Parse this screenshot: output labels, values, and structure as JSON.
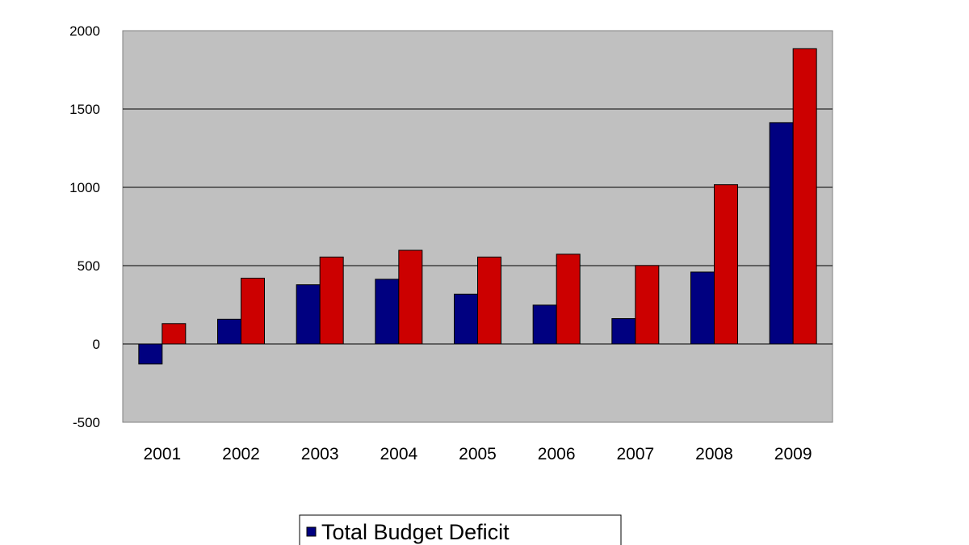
{
  "chart_data": {
    "type": "bar",
    "title": "",
    "xlabel": "",
    "ylabel": "",
    "categories": [
      "2001",
      "2002",
      "2003",
      "2004",
      "2005",
      "2006",
      "2007",
      "2008",
      "2009"
    ],
    "ylim": [
      -500,
      2000
    ],
    "yticks": [
      "2000",
      "1500",
      "1000",
      "500",
      "0",
      "-500"
    ],
    "grid": true,
    "legend_position": "bottom",
    "series": [
      {
        "name": "Total Budget Deficit",
        "color": "#000080",
        "values": [
          -128,
          158,
          378,
          413,
          318,
          248,
          162,
          459,
          1413
        ]
      },
      {
        "color": "#cc0000",
        "values": [
          130,
          420,
          555,
          598,
          555,
          573,
          501,
          1017,
          1885
        ]
      }
    ],
    "plot_background": "#c0c0c0"
  }
}
